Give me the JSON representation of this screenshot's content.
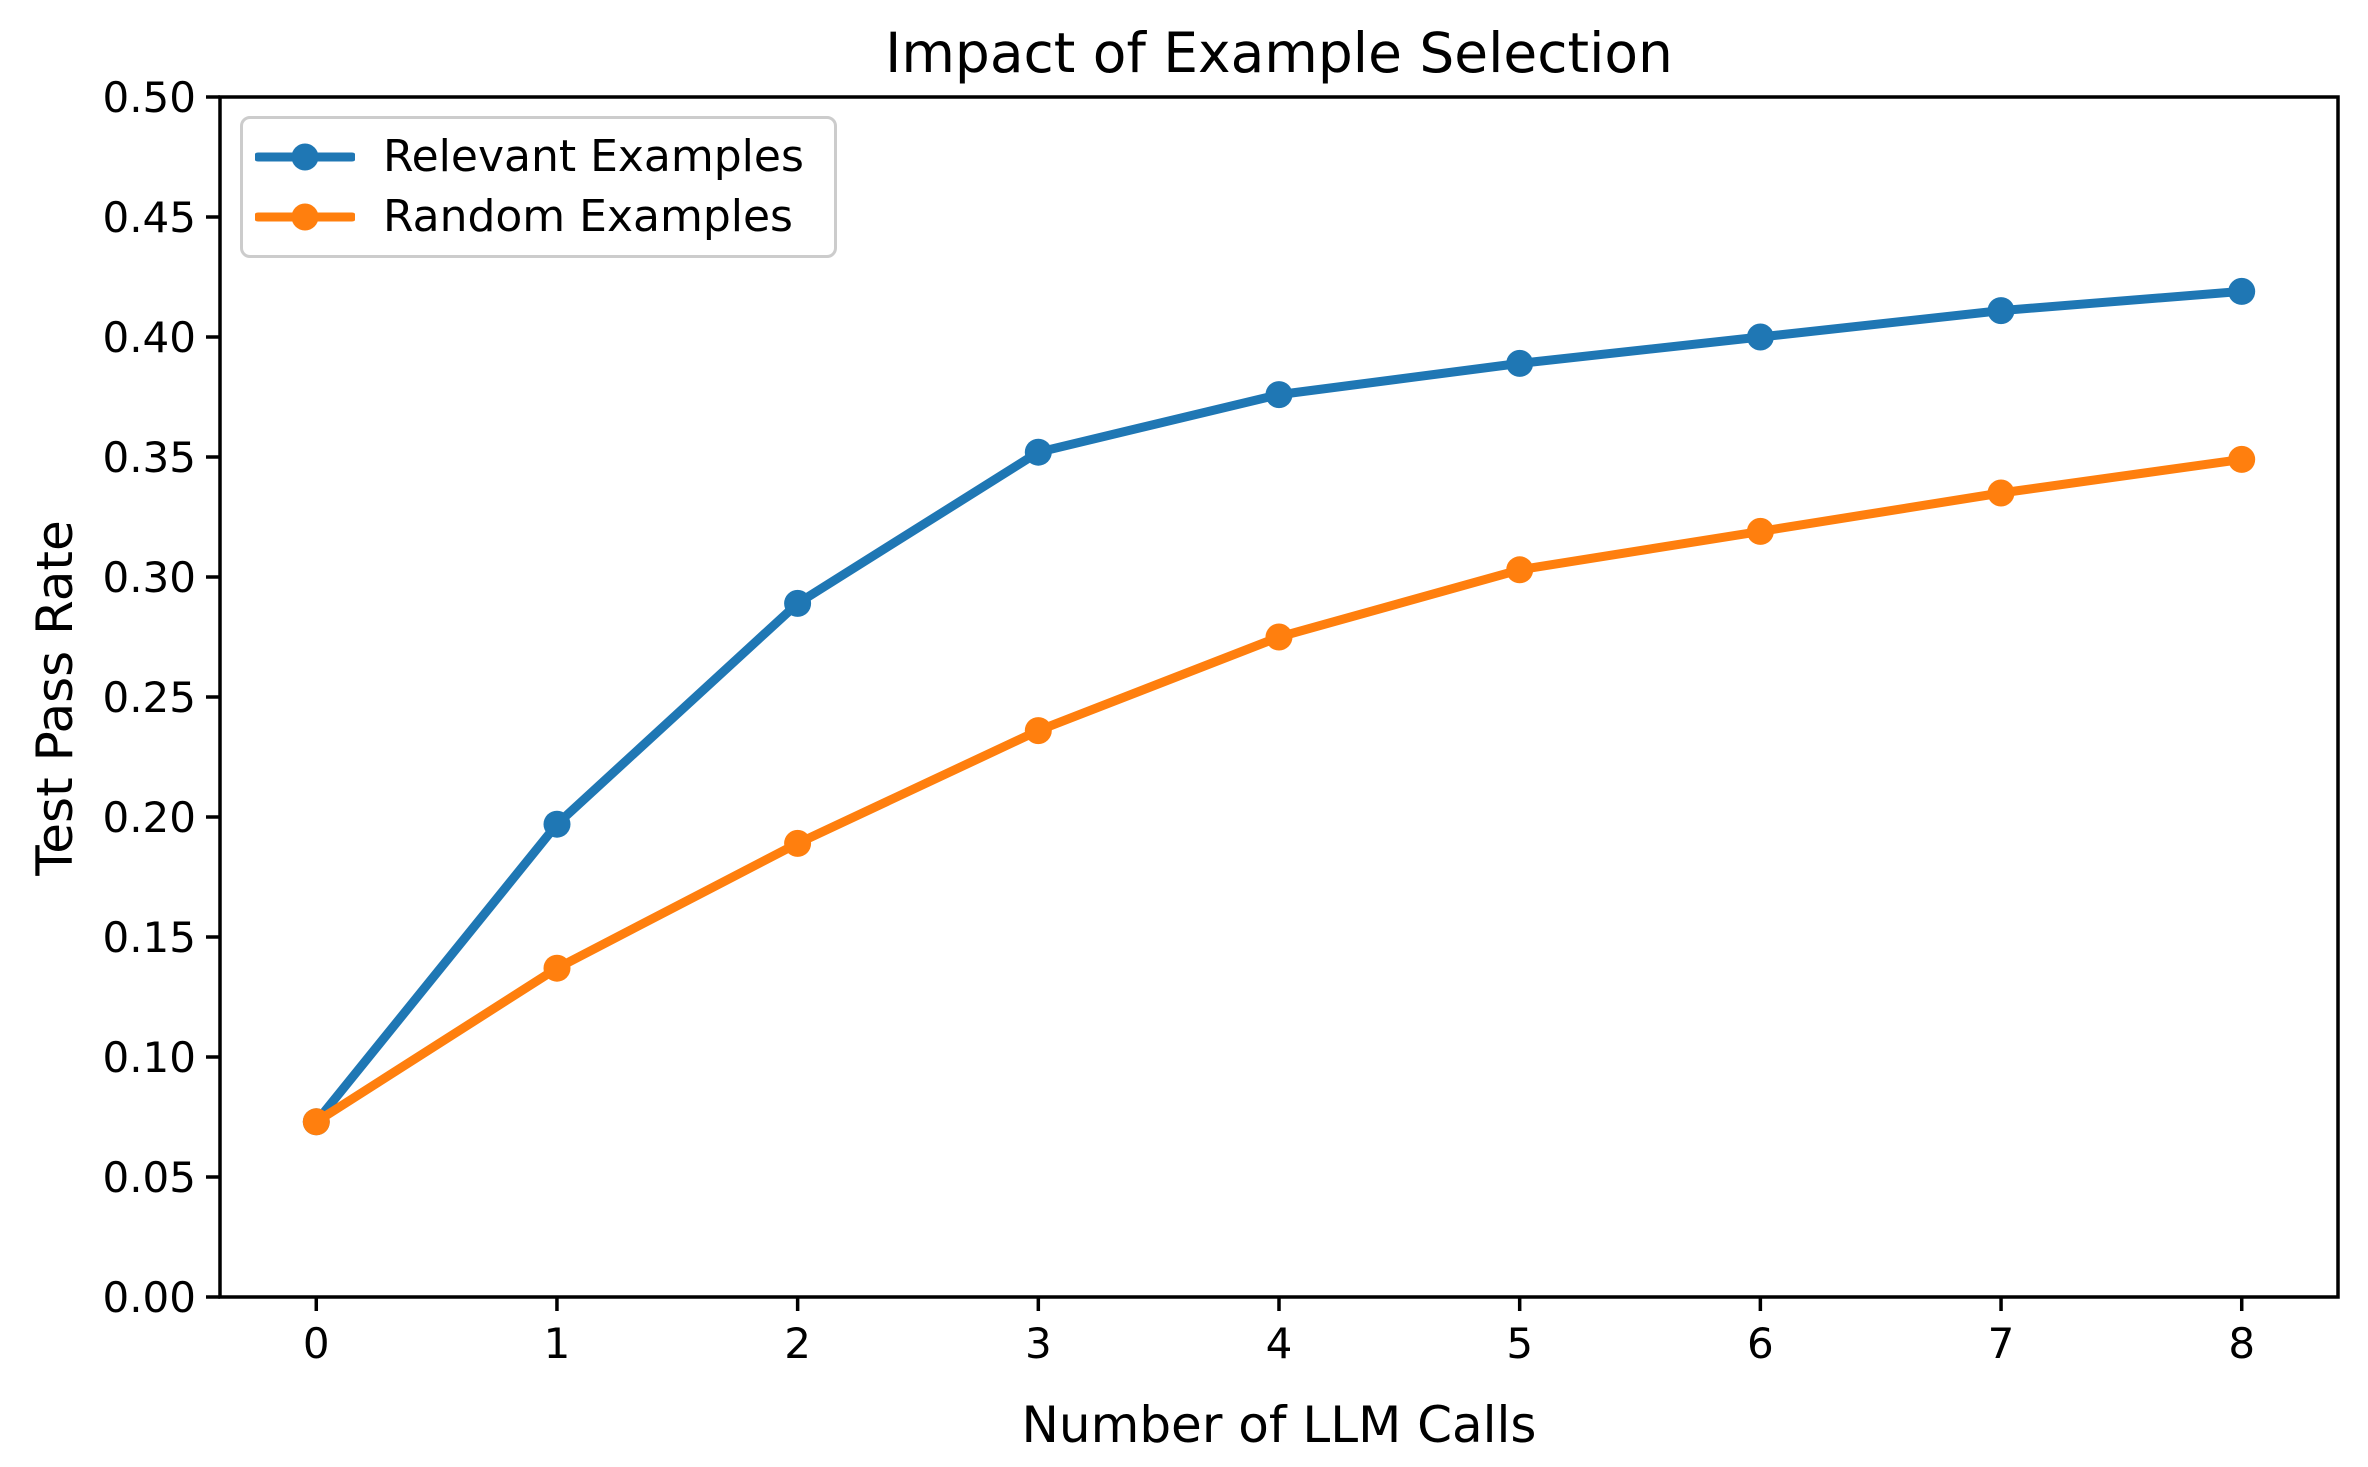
{
  "chart_data": {
    "type": "line",
    "title": "Impact of Example Selection",
    "xlabel": "Number of LLM Calls",
    "ylabel": "Test Pass Rate",
    "x": [
      0,
      1,
      2,
      3,
      4,
      5,
      6,
      7,
      8
    ],
    "series": [
      {
        "name": "Relevant Examples",
        "color": "#1f77b4",
        "values": [
          0.073,
          0.197,
          0.289,
          0.352,
          0.376,
          0.389,
          0.4,
          0.411,
          0.419
        ]
      },
      {
        "name": "Random Examples",
        "color": "#ff7f0e",
        "values": [
          0.073,
          0.137,
          0.189,
          0.236,
          0.275,
          0.303,
          0.319,
          0.335,
          0.349
        ]
      }
    ],
    "xlim": [
      -0.4,
      8.4
    ],
    "ylim": [
      0.0,
      0.5
    ],
    "xticks": [
      "0",
      "1",
      "2",
      "3",
      "4",
      "5",
      "6",
      "7",
      "8"
    ],
    "yticks": [
      "0.00",
      "0.05",
      "0.10",
      "0.15",
      "0.20",
      "0.25",
      "0.30",
      "0.35",
      "0.40",
      "0.45",
      "0.50"
    ],
    "legend_position": "upper left",
    "grid": false,
    "marker": "circle",
    "text_color": "#000000",
    "spine_color": "#000000",
    "background": "#ffffff"
  }
}
